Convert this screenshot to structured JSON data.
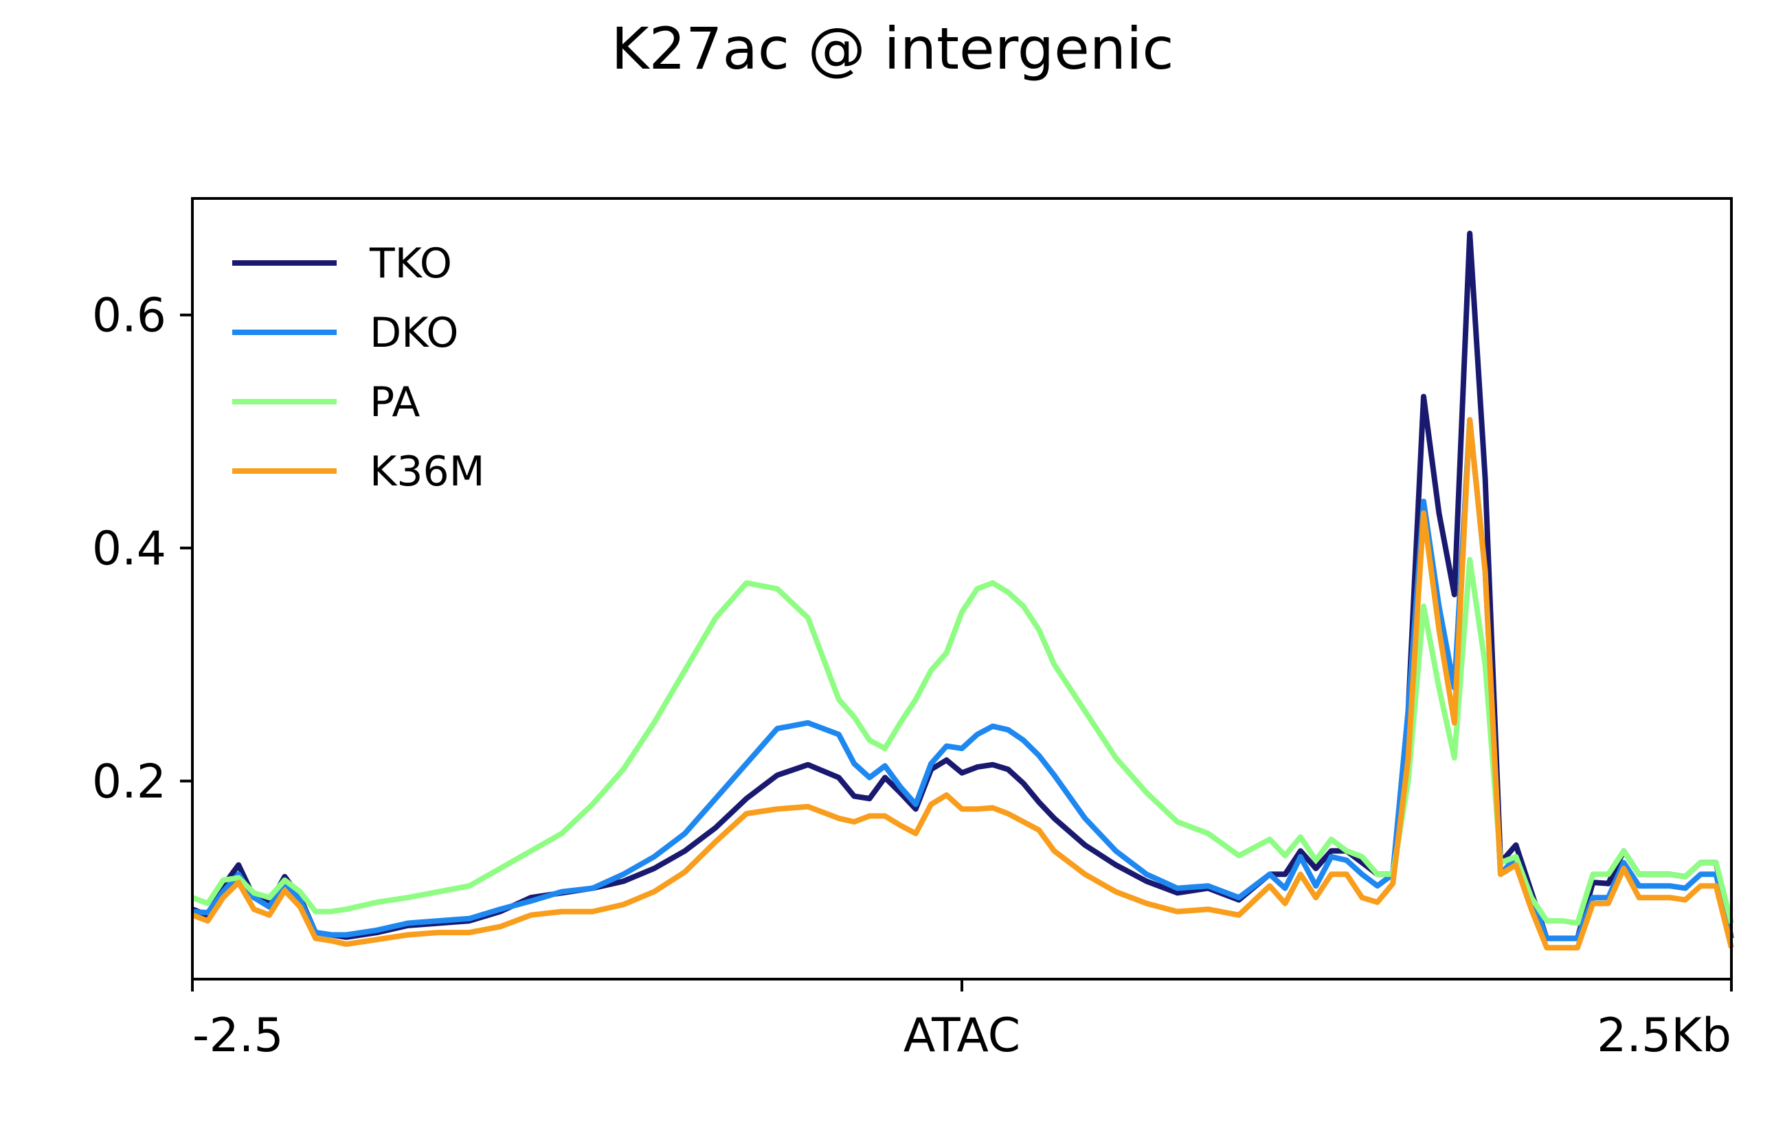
{
  "chart_data": {
    "type": "line",
    "title": "K27ac @ intergenic",
    "xlabel": "",
    "ylabel": "",
    "xlim": [
      -2.5,
      2.5
    ],
    "ylim": [
      0.03,
      0.7
    ],
    "x_ticks": [
      {
        "value": -2.5,
        "label": "-2.5"
      },
      {
        "value": 0,
        "label": "ATAC"
      },
      {
        "value": 2.5,
        "label": "2.5Kb"
      }
    ],
    "y_ticks": [
      {
        "value": 0.2,
        "label": "0.2"
      },
      {
        "value": 0.4,
        "label": "0.4"
      },
      {
        "value": 0.6,
        "label": "0.6"
      }
    ],
    "grid": false,
    "legend_position": "top-left",
    "x": [
      -2.5,
      -2.45,
      -2.4,
      -2.35,
      -2.3,
      -2.25,
      -2.2,
      -2.15,
      -2.1,
      -2.05,
      -2.0,
      -1.9,
      -1.8,
      -1.7,
      -1.6,
      -1.5,
      -1.4,
      -1.3,
      -1.2,
      -1.1,
      -1.0,
      -0.9,
      -0.8,
      -0.7,
      -0.6,
      -0.5,
      -0.4,
      -0.35,
      -0.3,
      -0.25,
      -0.2,
      -0.15,
      -0.1,
      -0.05,
      0.0,
      0.05,
      0.1,
      0.15,
      0.2,
      0.25,
      0.3,
      0.4,
      0.5,
      0.6,
      0.7,
      0.8,
      0.9,
      1.0,
      1.05,
      1.1,
      1.15,
      1.2,
      1.25,
      1.3,
      1.35,
      1.4,
      1.45,
      1.5,
      1.55,
      1.6,
      1.65,
      1.7,
      1.75,
      1.8,
      1.85,
      1.9,
      1.95,
      2.0,
      2.05,
      2.1,
      2.15,
      2.2,
      2.25,
      2.3,
      2.35,
      2.4,
      2.45,
      2.5
    ],
    "series": [
      {
        "name": "TKO",
        "color": "#191970",
        "values": [
          0.09,
          0.085,
          0.11,
          0.128,
          0.1,
          0.095,
          0.118,
          0.1,
          0.07,
          0.068,
          0.066,
          0.07,
          0.076,
          0.078,
          0.08,
          0.088,
          0.1,
          0.104,
          0.108,
          0.114,
          0.125,
          0.14,
          0.16,
          0.185,
          0.205,
          0.214,
          0.203,
          0.187,
          0.185,
          0.203,
          0.19,
          0.176,
          0.21,
          0.218,
          0.207,
          0.212,
          0.214,
          0.21,
          0.198,
          0.182,
          0.168,
          0.145,
          0.128,
          0.114,
          0.104,
          0.108,
          0.098,
          0.12,
          0.12,
          0.14,
          0.125,
          0.14,
          0.14,
          0.13,
          0.12,
          0.12,
          0.26,
          0.53,
          0.43,
          0.36,
          0.67,
          0.46,
          0.13,
          0.145,
          0.105,
          0.065,
          0.065,
          0.065,
          0.113,
          0.112,
          0.14,
          0.12,
          0.12,
          0.12,
          0.118,
          0.13,
          0.13,
          0.065
        ]
      },
      {
        "name": "DKO",
        "color": "#1e88f0",
        "values": [
          0.088,
          0.087,
          0.105,
          0.12,
          0.1,
          0.092,
          0.113,
          0.098,
          0.07,
          0.068,
          0.068,
          0.072,
          0.078,
          0.08,
          0.082,
          0.09,
          0.097,
          0.105,
          0.108,
          0.12,
          0.135,
          0.155,
          0.185,
          0.215,
          0.245,
          0.25,
          0.24,
          0.215,
          0.203,
          0.213,
          0.195,
          0.18,
          0.215,
          0.23,
          0.228,
          0.24,
          0.247,
          0.244,
          0.235,
          0.222,
          0.205,
          0.168,
          0.14,
          0.12,
          0.108,
          0.11,
          0.1,
          0.12,
          0.108,
          0.135,
          0.11,
          0.135,
          0.132,
          0.12,
          0.11,
          0.12,
          0.26,
          0.44,
          0.35,
          0.28,
          0.51,
          0.38,
          0.12,
          0.135,
          0.1,
          0.065,
          0.065,
          0.065,
          0.1,
          0.1,
          0.13,
          0.11,
          0.11,
          0.11,
          0.108,
          0.12,
          0.12,
          0.065
        ]
      },
      {
        "name": "PA",
        "color": "#8ffd84",
        "values": [
          0.1,
          0.095,
          0.115,
          0.117,
          0.104,
          0.1,
          0.115,
          0.105,
          0.088,
          0.088,
          0.09,
          0.096,
          0.1,
          0.105,
          0.11,
          0.125,
          0.14,
          0.155,
          0.18,
          0.21,
          0.25,
          0.295,
          0.34,
          0.37,
          0.365,
          0.34,
          0.27,
          0.255,
          0.235,
          0.228,
          0.25,
          0.27,
          0.295,
          0.31,
          0.345,
          0.365,
          0.37,
          0.362,
          0.35,
          0.33,
          0.3,
          0.26,
          0.22,
          0.19,
          0.165,
          0.155,
          0.136,
          0.15,
          0.136,
          0.152,
          0.132,
          0.15,
          0.14,
          0.135,
          0.12,
          0.12,
          0.2,
          0.35,
          0.28,
          0.22,
          0.39,
          0.3,
          0.13,
          0.135,
          0.1,
          0.08,
          0.08,
          0.078,
          0.12,
          0.12,
          0.14,
          0.12,
          0.12,
          0.12,
          0.118,
          0.13,
          0.13,
          0.078
        ]
      },
      {
        "name": "K36M",
        "color": "#f99d1c",
        "values": [
          0.085,
          0.08,
          0.1,
          0.113,
          0.09,
          0.085,
          0.106,
          0.092,
          0.065,
          0.063,
          0.06,
          0.064,
          0.068,
          0.07,
          0.07,
          0.075,
          0.085,
          0.088,
          0.088,
          0.094,
          0.105,
          0.122,
          0.148,
          0.172,
          0.176,
          0.178,
          0.168,
          0.165,
          0.17,
          0.17,
          0.162,
          0.155,
          0.18,
          0.188,
          0.176,
          0.176,
          0.177,
          0.172,
          0.165,
          0.158,
          0.14,
          0.12,
          0.105,
          0.095,
          0.088,
          0.09,
          0.085,
          0.11,
          0.095,
          0.12,
          0.1,
          0.12,
          0.12,
          0.1,
          0.096,
          0.112,
          0.22,
          0.43,
          0.33,
          0.25,
          0.51,
          0.38,
          0.12,
          0.128,
          0.09,
          0.057,
          0.057,
          0.057,
          0.095,
          0.095,
          0.125,
          0.1,
          0.1,
          0.1,
          0.098,
          0.11,
          0.11,
          0.057
        ]
      }
    ]
  }
}
